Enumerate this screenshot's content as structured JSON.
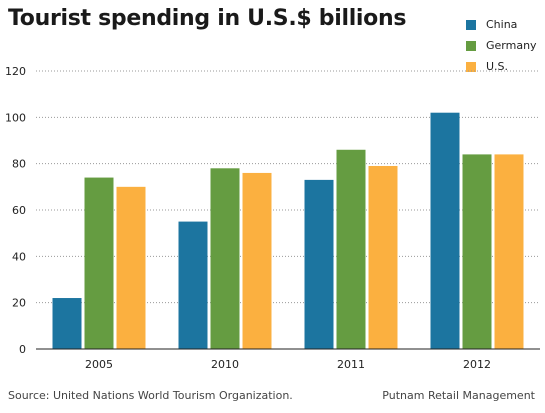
{
  "chart_data": {
    "type": "bar",
    "title": "Tourist spending in U.S.$ billions",
    "categories": [
      "2005",
      "2010",
      "2011",
      "2012"
    ],
    "series": [
      {
        "name": "China",
        "color": "#1c75a0",
        "values": [
          22,
          55,
          73,
          102
        ]
      },
      {
        "name": "Germany",
        "color": "#659c41",
        "values": [
          74,
          78,
          86,
          84
        ]
      },
      {
        "name": "U.S.",
        "color": "#fbb040",
        "values": [
          70,
          76,
          79,
          84
        ]
      }
    ],
    "y_ticks": [
      "0",
      "20",
      "40",
      "60",
      "80",
      "100",
      "120"
    ],
    "ylim": [
      0,
      120
    ],
    "grid": "horizontal dotted",
    "legend_position": "top-right"
  },
  "footer": {
    "source": "Source: United Nations World Tourism Organization.",
    "credit": "Putnam Retail Management"
  }
}
